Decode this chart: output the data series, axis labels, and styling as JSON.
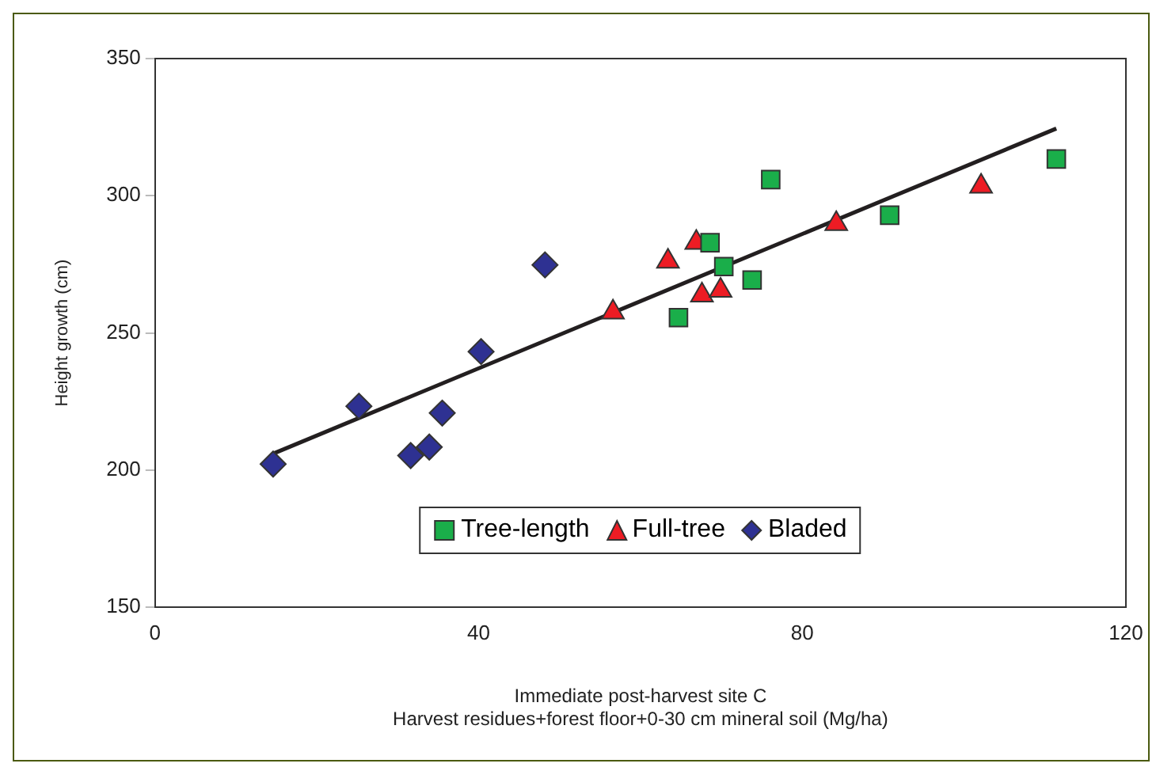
{
  "chart_data": {
    "type": "scatter",
    "xlabel": "Immediate post-harvest site C\nHarvest residues+forest floor+0-30 cm mineral soil (Mg/ha)",
    "ylabel": "Height growth (cm)",
    "xlim": [
      0,
      120
    ],
    "xticks": [
      0,
      40,
      80,
      120
    ],
    "ylim": [
      150,
      350
    ],
    "yticks": [
      150,
      200,
      250,
      300,
      350
    ],
    "grid": false,
    "legend": "bottom",
    "series": [
      {
        "name": "Tree-length",
        "color": "#1aae4a",
        "marker": "square",
        "x": [
          64.7,
          68.6,
          70.3,
          73.8,
          76.1,
          90.8,
          111.4
        ],
        "values": [
          255.6,
          282.9,
          274.2,
          269.3,
          305.9,
          292.9,
          313.4
        ]
      },
      {
        "name": "Full-tree",
        "color": "#ed1c24",
        "marker": "triangle",
        "x": [
          56.6,
          63.4,
          66.9,
          67.6,
          69.9,
          84.2,
          102.1
        ],
        "values": [
          257.5,
          276.1,
          282.9,
          263.7,
          265.5,
          289.8,
          303.4
        ]
      },
      {
        "name": "Bladed",
        "color": "#2e3192",
        "marker": "diamond",
        "x": [
          14.6,
          25.2,
          31.6,
          33.9,
          35.5,
          40.3,
          48.2
        ],
        "values": [
          202.2,
          223.3,
          205.3,
          208.4,
          220.8,
          243.2,
          274.8
        ]
      },
      {
        "type": "line",
        "color": "#231f20",
        "marker": "none",
        "x": [
          14.6,
          111.4
        ],
        "values": [
          206,
          324.5
        ]
      }
    ]
  }
}
